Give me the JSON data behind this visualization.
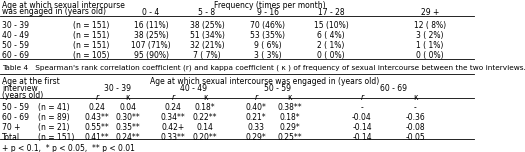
{
  "table3_rows": [
    [
      "30 - 39",
      "(n = 151)",
      "16 (11%)",
      "38 (25%)",
      "70 (46%)",
      "15 (10%)",
      "12 ( 8%)"
    ],
    [
      "40 - 49",
      "(n = 151)",
      "38 (25%)",
      "51 (34%)",
      "53 (35%)",
      "6 ( 4%)",
      "3 ( 2%)"
    ],
    [
      "50 - 59",
      "(n = 151)",
      "107 (71%)",
      "32 (21%)",
      "9 ( 6%)",
      "2 ( 1%)",
      "1 ( 1%)"
    ],
    [
      "60 - 69",
      "(n = 105)",
      "95 (90%)",
      "7 ( 7%)",
      "3 ( 3%)",
      "0 ( 0%)",
      "0 ( 0%)"
    ]
  ],
  "table4_title": "Table 4   Spearman's rank correlation coefficient (r) and kappa coefficient ( κ ) of frequency of sexual intercourse between the two interviews.",
  "table4_rows": [
    [
      "50 - 59",
      "(n = 41)",
      "0.24",
      "0.04",
      "0.24",
      "0.18*",
      "0.40*",
      "0.38**",
      "-",
      "-"
    ],
    [
      "60 - 69",
      "(n = 89)",
      "0.43**",
      "0.30**",
      "0.34**",
      "0.22**",
      "0.21*",
      "0.18*",
      "-0.04",
      "-0.36"
    ],
    [
      "70 +",
      "(n = 21)",
      "0.55**",
      "0.35**",
      "0.42+",
      "0.14",
      "0.33",
      "0.29*",
      "-0.14",
      "-0.08"
    ],
    [
      "Total",
      "(n = 151)",
      "0.41**",
      "0.24**",
      "0.33**",
      "0.20**",
      "0.29*",
      "0.25**",
      "-0.14",
      "-0.05"
    ]
  ],
  "footnote": "+ p < 0.1,  * p < 0.05,  ** p < 0.01",
  "bg_color": "#ffffff",
  "font_size": 5.5
}
